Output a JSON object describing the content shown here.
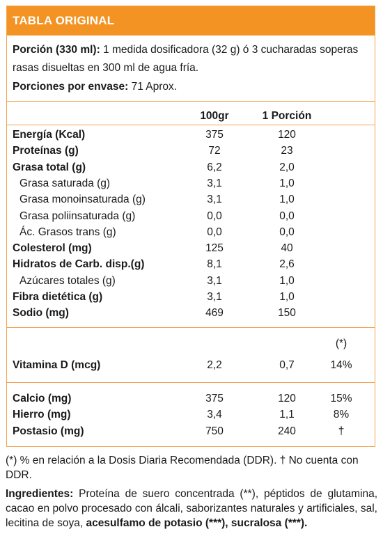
{
  "header": {
    "title": "TABLA ORIGINAL"
  },
  "serving": {
    "portion_label": "Porción (330 ml):",
    "portion_text": " 1 medida dosificadora (32 g) ó 3 cucharadas soperas rasas disueltas en 300 ml de agua fría.",
    "servings_label": "Porciones por envase:",
    "servings_text": " 71 Aprox."
  },
  "columns": {
    "per100": "100gr",
    "perPortion": "1 Porción"
  },
  "nutrients": [
    {
      "label": "Energía (Kcal)",
      "per100": "375",
      "portion": "120",
      "bold": true
    },
    {
      "label": "Proteínas (g)",
      "per100": "72",
      "portion": "23",
      "bold": true
    },
    {
      "label": "Grasa total (g)",
      "per100": "6,2",
      "portion": "2,0",
      "bold": true
    },
    {
      "label": "Grasa saturada (g)",
      "per100": "3,1",
      "portion": "1,0",
      "bold": false
    },
    {
      "label": "Grasa monoinsaturada (g)",
      "per100": "3,1",
      "portion": "1,0",
      "bold": false
    },
    {
      "label": "Grasa poliinsaturada (g)",
      "per100": "0,0",
      "portion": "0,0",
      "bold": false
    },
    {
      "label": "Ác. Grasos trans (g)",
      "per100": "0,0",
      "portion": "0,0",
      "bold": false
    },
    {
      "label": "Colesterol (mg)",
      "per100": "125",
      "portion": "40",
      "bold": true
    },
    {
      "label": "Hidratos de Carb. disp.(g)",
      "per100": "8,1",
      "portion": "2,6",
      "bold": true
    },
    {
      "label": "Azúcares totales (g)",
      "per100": "3,1",
      "portion": "1,0",
      "bold": false
    },
    {
      "label": "Fibra dietética (g)",
      "per100": "3,1",
      "portion": "1,0",
      "bold": true
    },
    {
      "label": "Sodio (mg)",
      "per100": "469",
      "portion": "150",
      "bold": true
    }
  ],
  "vitamins": {
    "ddr_header": "(*)",
    "rows": [
      {
        "label": "Vitamina D (mcg)",
        "per100": "2,2",
        "portion": "0,7",
        "ddr": "14%"
      }
    ]
  },
  "minerals": [
    {
      "label": "Calcio (mg)",
      "per100": "375",
      "portion": "120",
      "ddr": "15%"
    },
    {
      "label": "Hierro (mg)",
      "per100": "3,4",
      "portion": "1,1",
      "ddr": "8%"
    },
    {
      "label": "Postasio (mg)",
      "per100": "750",
      "portion": "240",
      "ddr": "†"
    }
  ],
  "footnote": "(*) % en relación a la Dosis Diaria Recomendada (DDR). † No cuenta con DDR.",
  "ingredients": {
    "label": "Ingredientes:",
    "text": " Proteína de suero concentrada (**), péptidos de glutamina, cacao en polvo procesado con álcali, saborizantes naturales y artificiales, sal, lecitina de soya, ",
    "bold_tail": "acesulfamo de potasio (***), sucralosa (***)."
  },
  "colors": {
    "accent": "#f39323",
    "border": "#f2a34f",
    "text": "#1a1a1a"
  }
}
